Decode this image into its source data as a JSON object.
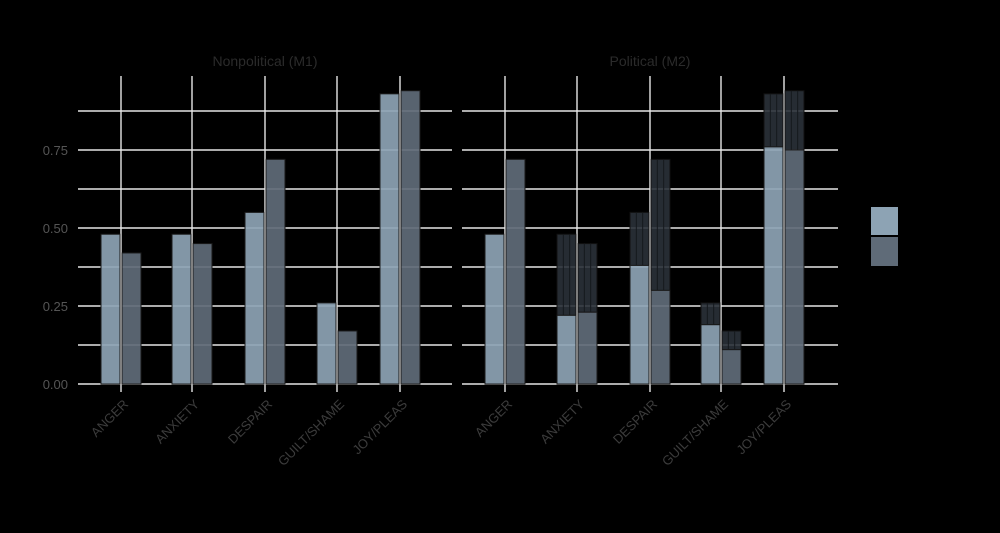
{
  "chart_data": {
    "type": "bar",
    "categories": [
      "ANGER",
      "ANXIETY",
      "DESPAIR",
      "GUILT/SHAME",
      "JOY/PLEAS"
    ],
    "ylim": [
      0,
      0.94
    ],
    "yticks": [
      "0.00",
      "0.25",
      "0.50",
      "0.75"
    ],
    "legend_position": "right",
    "colors": {
      "series_a": "#8da3b4",
      "series_b": "#5f6b78",
      "stack": "#2a3139"
    },
    "panels": [
      {
        "title": "Nonpolitical (M1)",
        "series": [
          {
            "values": [
              0.48,
              0.48,
              0.55,
              0.26,
              0.93
            ]
          },
          {
            "values": [
              0.42,
              0.45,
              0.72,
              0.17,
              0.94
            ]
          }
        ]
      },
      {
        "title": "Political (M2)",
        "series": [
          {
            "values": [
              0.48,
              0.22,
              0.38,
              0.19,
              0.76
            ],
            "totals": [
              0.48,
              0.48,
              0.55,
              0.26,
              0.93
            ]
          },
          {
            "values": [
              0.72,
              0.23,
              0.3,
              0.11,
              0.75
            ],
            "totals": [
              0.72,
              0.45,
              0.72,
              0.17,
              0.94
            ]
          }
        ]
      }
    ]
  }
}
